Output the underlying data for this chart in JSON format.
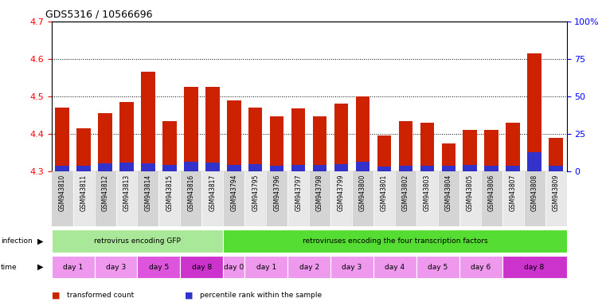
{
  "title": "GDS5316 / 10566696",
  "samples": [
    "GSM943810",
    "GSM943811",
    "GSM943812",
    "GSM943813",
    "GSM943814",
    "GSM943815",
    "GSM943816",
    "GSM943817",
    "GSM943794",
    "GSM943795",
    "GSM943796",
    "GSM943797",
    "GSM943798",
    "GSM943799",
    "GSM943800",
    "GSM943801",
    "GSM943802",
    "GSM943803",
    "GSM943804",
    "GSM943805",
    "GSM943806",
    "GSM943807",
    "GSM943808",
    "GSM943809"
  ],
  "red_values": [
    4.47,
    4.415,
    4.455,
    4.485,
    4.565,
    4.435,
    4.525,
    4.525,
    4.49,
    4.47,
    4.447,
    4.468,
    4.447,
    4.48,
    4.5,
    4.395,
    4.435,
    4.43,
    4.375,
    4.41,
    4.41,
    4.43,
    4.615,
    4.39
  ],
  "blue_values": [
    3.5,
    3.5,
    5.5,
    6.0,
    5.5,
    4.5,
    6.5,
    6.0,
    4.5,
    5.0,
    4.0,
    4.5,
    4.5,
    5.0,
    6.5,
    3.0,
    4.0,
    4.0,
    3.5,
    4.5,
    3.5,
    4.0,
    13.0,
    3.5
  ],
  "y_min": 4.3,
  "y_max": 4.7,
  "y_ticks": [
    4.3,
    4.4,
    4.5,
    4.6,
    4.7
  ],
  "y2_ticks": [
    0,
    25,
    50,
    75,
    100
  ],
  "bar_color": "#cc2200",
  "blue_color": "#3333cc",
  "infection_groups": [
    {
      "label": "retrovirus encoding GFP",
      "start": 0,
      "end": 8,
      "color": "#aae899"
    },
    {
      "label": "retroviruses encoding the four transcription factors",
      "start": 8,
      "end": 24,
      "color": "#55dd33"
    }
  ],
  "time_groups": [
    {
      "label": "day 1",
      "start": 0,
      "end": 2,
      "color": "#ee99ee"
    },
    {
      "label": "day 3",
      "start": 2,
      "end": 4,
      "color": "#ee99ee"
    },
    {
      "label": "day 5",
      "start": 4,
      "end": 6,
      "color": "#dd55dd"
    },
    {
      "label": "day 8",
      "start": 6,
      "end": 8,
      "color": "#cc33cc"
    },
    {
      "label": "day 0",
      "start": 8,
      "end": 9,
      "color": "#ee99ee"
    },
    {
      "label": "day 1",
      "start": 9,
      "end": 11,
      "color": "#ee99ee"
    },
    {
      "label": "day 2",
      "start": 11,
      "end": 13,
      "color": "#ee99ee"
    },
    {
      "label": "day 3",
      "start": 13,
      "end": 15,
      "color": "#ee99ee"
    },
    {
      "label": "day 4",
      "start": 15,
      "end": 17,
      "color": "#ee99ee"
    },
    {
      "label": "day 5",
      "start": 17,
      "end": 19,
      "color": "#ee99ee"
    },
    {
      "label": "day 6",
      "start": 19,
      "end": 21,
      "color": "#ee99ee"
    },
    {
      "label": "day 8",
      "start": 21,
      "end": 24,
      "color": "#cc33cc"
    }
  ],
  "legend_items": [
    {
      "label": "transformed count",
      "color": "#cc2200"
    },
    {
      "label": "percentile rank within the sample",
      "color": "#3333cc"
    }
  ],
  "col_bg_even": "#d4d4d4",
  "col_bg_odd": "#e8e8e8"
}
